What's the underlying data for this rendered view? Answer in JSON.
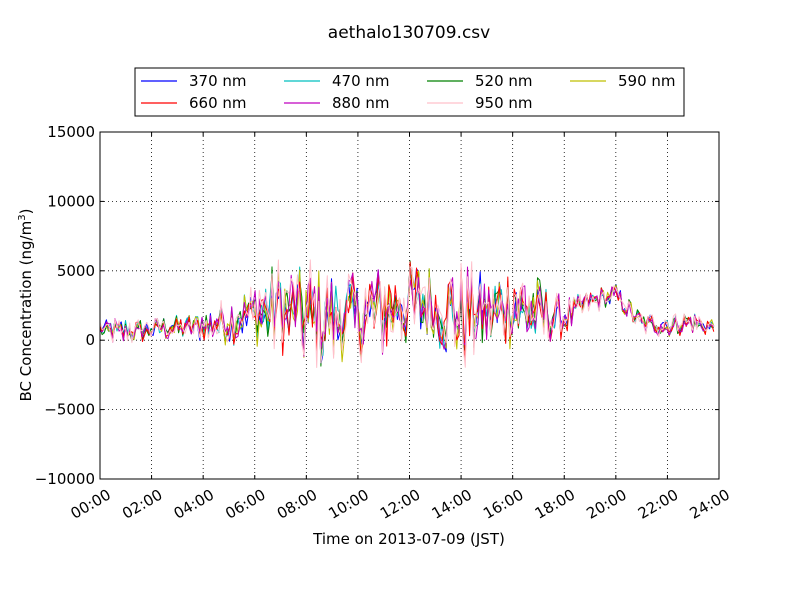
{
  "chart_data": {
    "type": "line",
    "title": "aethalo130709.csv",
    "xlabel": "Time on 2013-07-09 (JST)",
    "ylabel": "BC Concentration (ng/m",
    "ylabel_sup": "3",
    "ylabel_close": ")",
    "xlim": [
      0,
      24
    ],
    "ylim": [
      -10000,
      15000
    ],
    "x_ticks": [
      0,
      2,
      4,
      6,
      8,
      10,
      12,
      14,
      16,
      18,
      20,
      22,
      24
    ],
    "x_tick_labels": [
      "00:00",
      "02:00",
      "04:00",
      "06:00",
      "08:00",
      "10:00",
      "12:00",
      "14:00",
      "16:00",
      "18:00",
      "20:00",
      "22:00",
      "24:00"
    ],
    "y_ticks": [
      -10000,
      -5000,
      0,
      5000,
      10000,
      15000
    ],
    "y_tick_labels": [
      "−10000",
      "−5000",
      "0",
      "5000",
      "10000",
      "15000"
    ],
    "grid": true,
    "legend_position": "top",
    "data_end_hour": 23.8,
    "profile": {
      "hours": [
        0,
        1,
        2,
        3,
        4,
        5,
        6,
        7,
        8,
        9,
        10,
        11,
        12,
        13,
        14,
        15,
        16,
        17,
        18,
        19,
        20,
        21,
        22,
        23,
        23.8
      ],
      "mean": [
        700,
        600,
        800,
        900,
        1000,
        1300,
        2000,
        2300,
        1800,
        1500,
        1900,
        2200,
        2600,
        2400,
        1800,
        2000,
        2600,
        2000,
        1600,
        2800,
        3200,
        1200,
        1100,
        1300,
        900
      ],
      "amplitude": [
        700,
        900,
        700,
        800,
        1100,
        1400,
        2000,
        3000,
        3500,
        3000,
        2600,
        3000,
        2800,
        2600,
        3200,
        2400,
        2800,
        2200,
        1200,
        700,
        800,
        700,
        800,
        700,
        600
      ]
    },
    "series": [
      {
        "name": "370 nm",
        "color": "#0000ff"
      },
      {
        "name": "470 nm",
        "color": "#00bfbf"
      },
      {
        "name": "520 nm",
        "color": "#008000"
      },
      {
        "name": "590 nm",
        "color": "#bfbf00"
      },
      {
        "name": "660 nm",
        "color": "#ff0000"
      },
      {
        "name": "880 nm",
        "color": "#bf00bf"
      },
      {
        "name": "950 nm",
        "color": "#ffc0cb"
      }
    ]
  }
}
